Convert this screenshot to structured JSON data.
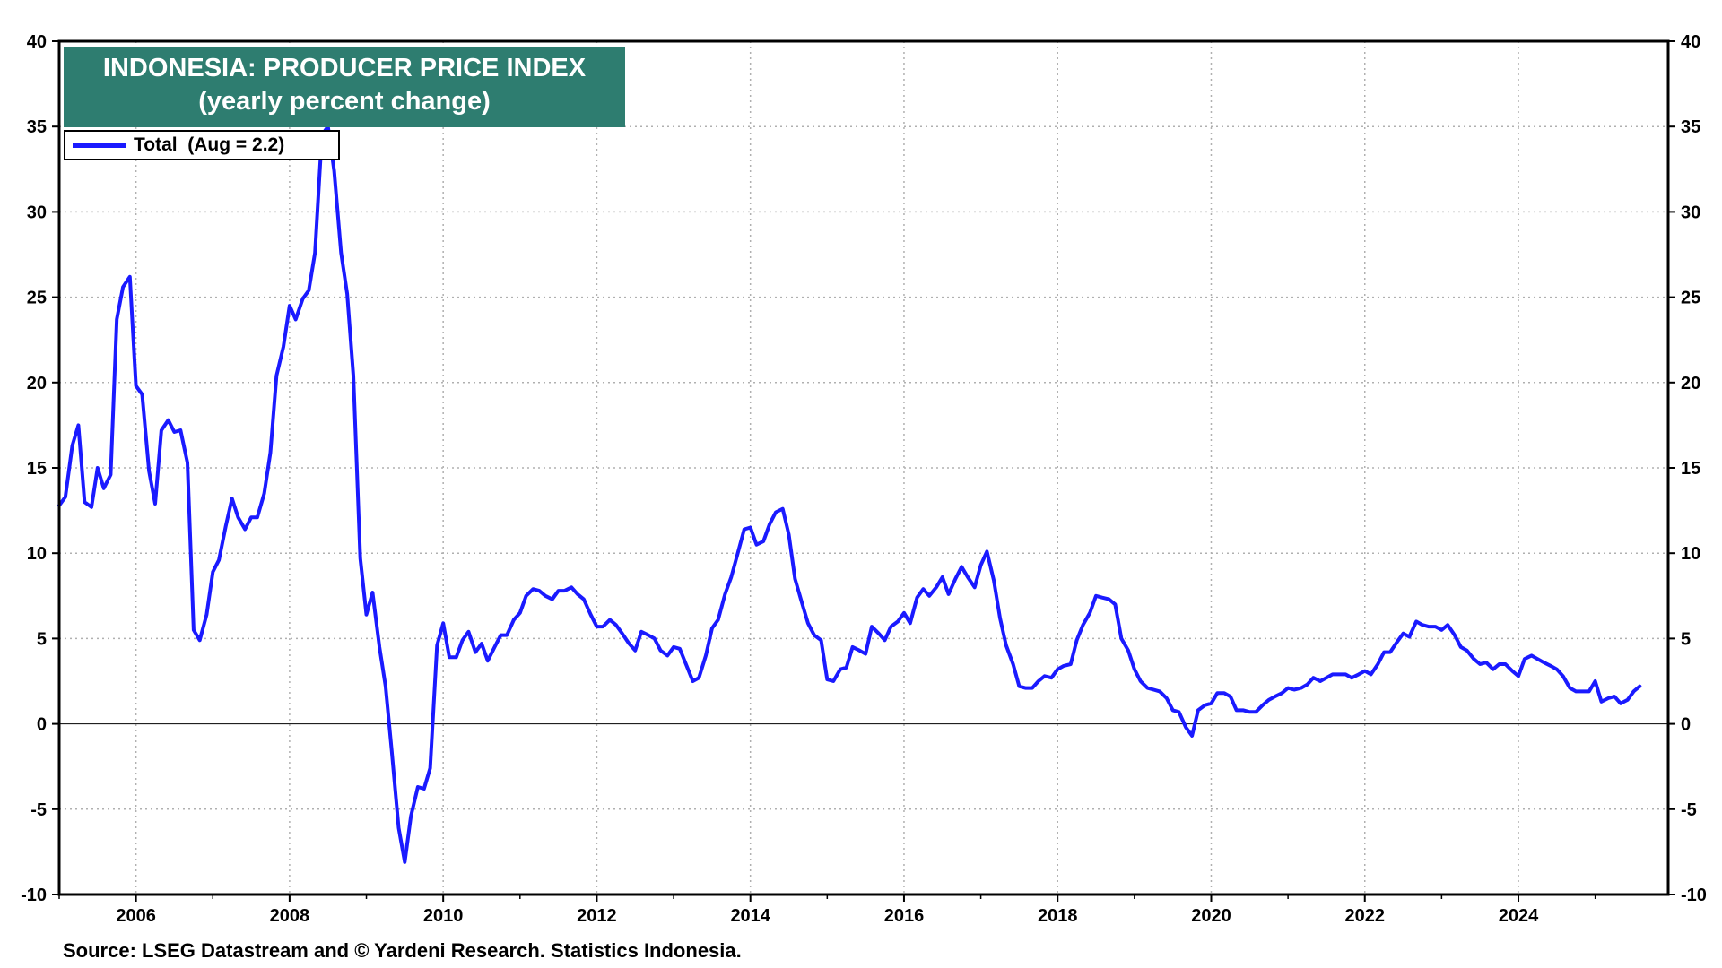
{
  "chart_data": {
    "type": "line",
    "title": "INDONESIA: PRODUCER PRICE INDEX",
    "subtitle": "(yearly percent change)",
    "xlabel": "",
    "ylabel": "",
    "xlim": [
      2005.0,
      2025.95
    ],
    "ylim": [
      -10,
      40
    ],
    "y_ticks": [
      -10,
      -5,
      0,
      5,
      10,
      15,
      20,
      25,
      30,
      35,
      40
    ],
    "y_tick_labels": [
      "-10",
      "-5",
      "0",
      "5",
      "10",
      "15",
      "20",
      "25",
      "30",
      "35",
      "40"
    ],
    "x_ticks": [
      2006,
      2008,
      2010,
      2012,
      2014,
      2016,
      2018,
      2020,
      2022,
      2024
    ],
    "x_tick_labels": [
      "2006",
      "2008",
      "2010",
      "2012",
      "2014",
      "2016",
      "2018",
      "2020",
      "2022",
      "2024"
    ],
    "grid": true,
    "legend_position": "top-left",
    "zero_line": true,
    "colors": {
      "series": "#1a1aff",
      "title_bg": "#2e7d70"
    },
    "series": [
      {
        "name": "Total",
        "legend_label": "Total  (Aug = 2.2)",
        "points": [
          [
            2005.0,
            12.8
          ],
          [
            2005.08,
            13.3
          ],
          [
            2005.17,
            16.3
          ],
          [
            2005.25,
            17.5
          ],
          [
            2005.33,
            13.0
          ],
          [
            2005.42,
            12.7
          ],
          [
            2005.5,
            15.0
          ],
          [
            2005.58,
            13.8
          ],
          [
            2005.67,
            14.6
          ],
          [
            2005.75,
            23.7
          ],
          [
            2005.83,
            25.6
          ],
          [
            2005.92,
            26.2
          ],
          [
            2006.0,
            19.8
          ],
          [
            2006.08,
            19.3
          ],
          [
            2006.17,
            14.8
          ],
          [
            2006.25,
            12.9
          ],
          [
            2006.33,
            17.2
          ],
          [
            2006.42,
            17.8
          ],
          [
            2006.5,
            17.1
          ],
          [
            2006.58,
            17.2
          ],
          [
            2006.67,
            15.3
          ],
          [
            2006.75,
            5.5
          ],
          [
            2006.83,
            4.9
          ],
          [
            2006.92,
            6.4
          ],
          [
            2007.0,
            8.9
          ],
          [
            2007.08,
            9.6
          ],
          [
            2007.17,
            11.6
          ],
          [
            2007.25,
            13.2
          ],
          [
            2007.33,
            12.1
          ],
          [
            2007.42,
            11.4
          ],
          [
            2007.5,
            12.1
          ],
          [
            2007.58,
            12.1
          ],
          [
            2007.67,
            13.5
          ],
          [
            2007.75,
            15.9
          ],
          [
            2007.83,
            20.4
          ],
          [
            2007.92,
            22.1
          ],
          [
            2008.0,
            24.5
          ],
          [
            2008.08,
            23.7
          ],
          [
            2008.17,
            24.9
          ],
          [
            2008.25,
            25.4
          ],
          [
            2008.33,
            27.6
          ],
          [
            2008.42,
            34.5
          ],
          [
            2008.5,
            35.0
          ],
          [
            2008.58,
            32.4
          ],
          [
            2008.67,
            27.6
          ],
          [
            2008.75,
            25.2
          ],
          [
            2008.83,
            20.4
          ],
          [
            2008.92,
            9.7
          ],
          [
            2009.0,
            6.4
          ],
          [
            2009.08,
            7.7
          ],
          [
            2009.17,
            4.5
          ],
          [
            2009.25,
            2.2
          ],
          [
            2009.33,
            -1.6
          ],
          [
            2009.42,
            -6.1
          ],
          [
            2009.5,
            -8.1
          ],
          [
            2009.58,
            -5.4
          ],
          [
            2009.67,
            -3.7
          ],
          [
            2009.75,
            -3.8
          ],
          [
            2009.83,
            -2.6
          ],
          [
            2009.92,
            4.6
          ],
          [
            2010.0,
            5.9
          ],
          [
            2010.08,
            3.9
          ],
          [
            2010.17,
            3.9
          ],
          [
            2010.25,
            4.9
          ],
          [
            2010.33,
            5.4
          ],
          [
            2010.42,
            4.2
          ],
          [
            2010.5,
            4.7
          ],
          [
            2010.58,
            3.7
          ],
          [
            2010.67,
            4.5
          ],
          [
            2010.75,
            5.2
          ],
          [
            2010.83,
            5.2
          ],
          [
            2010.92,
            6.1
          ],
          [
            2011.0,
            6.5
          ],
          [
            2011.08,
            7.5
          ],
          [
            2011.17,
            7.9
          ],
          [
            2011.25,
            7.8
          ],
          [
            2011.33,
            7.5
          ],
          [
            2011.42,
            7.3
          ],
          [
            2011.5,
            7.8
          ],
          [
            2011.58,
            7.8
          ],
          [
            2011.67,
            8.0
          ],
          [
            2011.75,
            7.6
          ],
          [
            2011.83,
            7.3
          ],
          [
            2011.92,
            6.4
          ],
          [
            2012.0,
            5.7
          ],
          [
            2012.08,
            5.7
          ],
          [
            2012.17,
            6.1
          ],
          [
            2012.25,
            5.8
          ],
          [
            2012.33,
            5.3
          ],
          [
            2012.42,
            4.7
          ],
          [
            2012.5,
            4.3
          ],
          [
            2012.58,
            5.4
          ],
          [
            2012.67,
            5.2
          ],
          [
            2012.75,
            5.0
          ],
          [
            2012.83,
            4.3
          ],
          [
            2012.92,
            4.0
          ],
          [
            2013.0,
            4.5
          ],
          [
            2013.08,
            4.4
          ],
          [
            2013.17,
            3.4
          ],
          [
            2013.25,
            2.5
          ],
          [
            2013.33,
            2.7
          ],
          [
            2013.42,
            4.0
          ],
          [
            2013.5,
            5.6
          ],
          [
            2013.58,
            6.1
          ],
          [
            2013.67,
            7.6
          ],
          [
            2013.75,
            8.6
          ],
          [
            2013.83,
            9.9
          ],
          [
            2013.92,
            11.4
          ],
          [
            2014.0,
            11.5
          ],
          [
            2014.08,
            10.5
          ],
          [
            2014.17,
            10.7
          ],
          [
            2014.25,
            11.7
          ],
          [
            2014.33,
            12.4
          ],
          [
            2014.42,
            12.6
          ],
          [
            2014.5,
            11.1
          ],
          [
            2014.58,
            8.5
          ],
          [
            2014.67,
            7.1
          ],
          [
            2014.75,
            5.9
          ],
          [
            2014.83,
            5.2
          ],
          [
            2014.92,
            4.9
          ],
          [
            2015.0,
            2.6
          ],
          [
            2015.08,
            2.5
          ],
          [
            2015.17,
            3.2
          ],
          [
            2015.25,
            3.3
          ],
          [
            2015.33,
            4.5
          ],
          [
            2015.42,
            4.3
          ],
          [
            2015.5,
            4.1
          ],
          [
            2015.58,
            5.7
          ],
          [
            2015.67,
            5.3
          ],
          [
            2015.75,
            4.9
          ],
          [
            2015.83,
            5.7
          ],
          [
            2015.92,
            6.0
          ],
          [
            2016.0,
            6.5
          ],
          [
            2016.08,
            5.9
          ],
          [
            2016.17,
            7.4
          ],
          [
            2016.25,
            7.9
          ],
          [
            2016.33,
            7.5
          ],
          [
            2016.42,
            8.0
          ],
          [
            2016.5,
            8.6
          ],
          [
            2016.58,
            7.6
          ],
          [
            2016.67,
            8.5
          ],
          [
            2016.75,
            9.2
          ],
          [
            2016.83,
            8.6
          ],
          [
            2016.92,
            8.0
          ],
          [
            2017.0,
            9.3
          ],
          [
            2017.08,
            10.1
          ],
          [
            2017.17,
            8.4
          ],
          [
            2017.25,
            6.2
          ],
          [
            2017.33,
            4.6
          ],
          [
            2017.42,
            3.5
          ],
          [
            2017.5,
            2.2
          ],
          [
            2017.58,
            2.1
          ],
          [
            2017.67,
            2.1
          ],
          [
            2017.75,
            2.5
          ],
          [
            2017.83,
            2.8
          ],
          [
            2017.92,
            2.7
          ],
          [
            2018.0,
            3.2
          ],
          [
            2018.08,
            3.4
          ],
          [
            2018.17,
            3.5
          ],
          [
            2018.25,
            4.9
          ],
          [
            2018.33,
            5.8
          ],
          [
            2018.42,
            6.5
          ],
          [
            2018.5,
            7.5
          ],
          [
            2018.58,
            7.4
          ],
          [
            2018.67,
            7.3
          ],
          [
            2018.75,
            7.0
          ],
          [
            2018.83,
            5.0
          ],
          [
            2018.92,
            4.3
          ],
          [
            2019.0,
            3.2
          ],
          [
            2019.08,
            2.5
          ],
          [
            2019.17,
            2.1
          ],
          [
            2019.25,
            2.0
          ],
          [
            2019.33,
            1.9
          ],
          [
            2019.42,
            1.5
          ],
          [
            2019.5,
            0.8
          ],
          [
            2019.58,
            0.7
          ],
          [
            2019.67,
            -0.2
          ],
          [
            2019.75,
            -0.7
          ],
          [
            2019.83,
            0.8
          ],
          [
            2019.92,
            1.1
          ],
          [
            2020.0,
            1.2
          ],
          [
            2020.08,
            1.8
          ],
          [
            2020.17,
            1.8
          ],
          [
            2020.25,
            1.6
          ],
          [
            2020.33,
            0.8
          ],
          [
            2020.42,
            0.8
          ],
          [
            2020.5,
            0.7
          ],
          [
            2020.58,
            0.7
          ],
          [
            2020.67,
            1.1
          ],
          [
            2020.75,
            1.4
          ],
          [
            2020.83,
            1.6
          ],
          [
            2020.92,
            1.8
          ],
          [
            2021.0,
            2.1
          ],
          [
            2021.08,
            2.0
          ],
          [
            2021.17,
            2.1
          ],
          [
            2021.25,
            2.3
          ],
          [
            2021.33,
            2.7
          ],
          [
            2021.42,
            2.5
          ],
          [
            2021.5,
            2.7
          ],
          [
            2021.58,
            2.9
          ],
          [
            2021.67,
            2.9
          ],
          [
            2021.75,
            2.9
          ],
          [
            2021.83,
            2.7
          ],
          [
            2021.92,
            2.9
          ],
          [
            2022.0,
            3.1
          ],
          [
            2022.08,
            2.9
          ],
          [
            2022.17,
            3.5
          ],
          [
            2022.25,
            4.2
          ],
          [
            2022.33,
            4.2
          ],
          [
            2022.42,
            4.8
          ],
          [
            2022.5,
            5.3
          ],
          [
            2022.58,
            5.1
          ],
          [
            2022.67,
            6.0
          ],
          [
            2022.75,
            5.8
          ],
          [
            2022.83,
            5.7
          ],
          [
            2022.92,
            5.7
          ],
          [
            2023.0,
            5.5
          ],
          [
            2023.08,
            5.8
          ],
          [
            2023.17,
            5.2
          ],
          [
            2023.25,
            4.5
          ],
          [
            2023.33,
            4.3
          ],
          [
            2023.42,
            3.8
          ],
          [
            2023.5,
            3.5
          ],
          [
            2023.58,
            3.6
          ],
          [
            2023.67,
            3.2
          ],
          [
            2023.75,
            3.5
          ],
          [
            2023.83,
            3.5
          ],
          [
            2023.92,
            3.1
          ],
          [
            2024.0,
            2.8
          ],
          [
            2024.08,
            3.8
          ],
          [
            2024.17,
            4.0
          ],
          [
            2024.25,
            3.8
          ],
          [
            2024.33,
            3.6
          ],
          [
            2024.42,
            3.4
          ],
          [
            2024.5,
            3.2
          ],
          [
            2024.58,
            2.8
          ],
          [
            2024.67,
            2.1
          ],
          [
            2024.75,
            1.9
          ],
          [
            2024.83,
            1.9
          ],
          [
            2024.92,
            1.9
          ],
          [
            2025.0,
            2.5
          ],
          [
            2025.08,
            1.3
          ],
          [
            2025.17,
            1.5
          ],
          [
            2025.25,
            1.6
          ],
          [
            2025.33,
            1.2
          ],
          [
            2025.42,
            1.4
          ],
          [
            2025.5,
            1.9
          ],
          [
            2025.58,
            2.2
          ]
        ]
      }
    ],
    "source": "Source: LSEG Datastream and © Yardeni Research. Statistics Indonesia."
  }
}
